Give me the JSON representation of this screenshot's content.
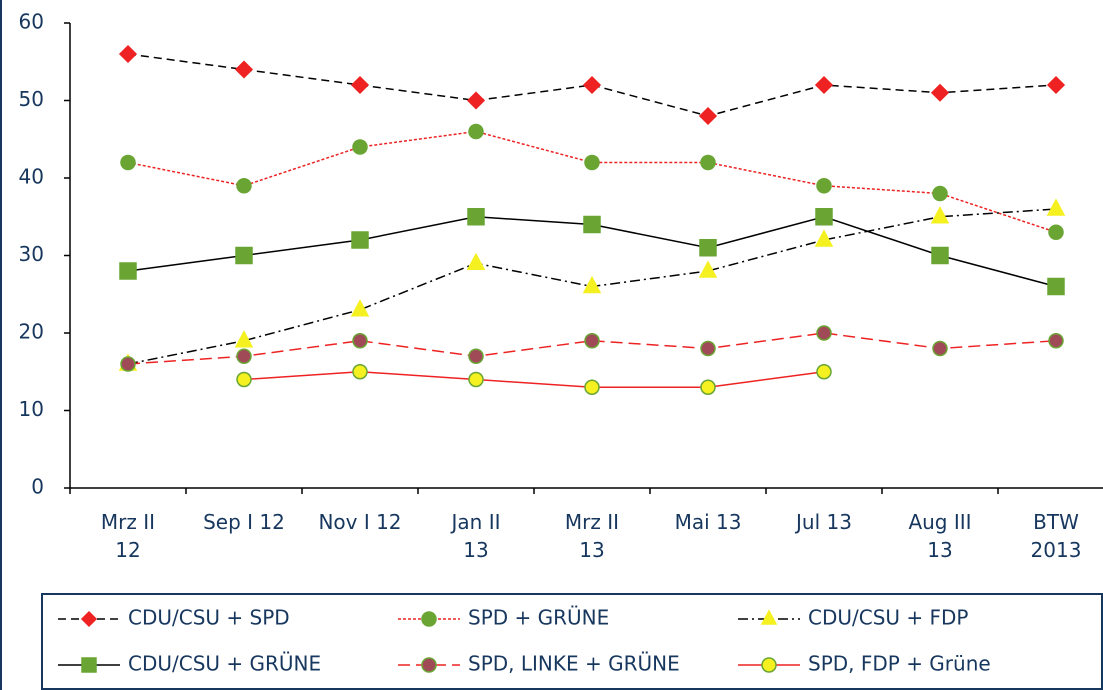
{
  "chart_data": {
    "type": "line",
    "categories": [
      "Mrz II\n12",
      "Sep I 12",
      "Nov I 12",
      "Jan II\n13",
      "Mrz II\n13",
      "Mai 13",
      "Jul 13",
      "Aug III\n13",
      "BTW\n2013"
    ],
    "ylim": [
      0,
      60
    ],
    "yticks": [
      0,
      10,
      20,
      30,
      40,
      50,
      60
    ],
    "series": [
      {
        "name": "CDU/CSU + SPD",
        "color": "#000000",
        "line_style": "dashed",
        "marker": "diamond",
        "marker_color": "#ee2222",
        "marker_edge": "#ee2222",
        "values": [
          56,
          54,
          52,
          50,
          52,
          48,
          52,
          51,
          52
        ]
      },
      {
        "name": "SPD + GRÜNE",
        "color": "#ee2222",
        "line_style": "dotted",
        "marker": "circle",
        "marker_color": "#6aa534",
        "marker_edge": "#6aa534",
        "values": [
          42,
          39,
          44,
          46,
          42,
          42,
          39,
          38,
          33
        ]
      },
      {
        "name": "CDU/CSU + FDP",
        "color": "#000000",
        "line_style": "dashdot",
        "marker": "triangle",
        "marker_color": "#f5f020",
        "marker_edge": "#f5f020",
        "values": [
          16,
          19,
          23,
          29,
          26,
          28,
          32,
          35,
          36
        ]
      },
      {
        "name": "CDU/CSU + GRÜNE",
        "color": "#000000",
        "line_style": "solid",
        "marker": "square",
        "marker_color": "#6aa534",
        "marker_edge": "#6aa534",
        "values": [
          28,
          30,
          32,
          35,
          34,
          31,
          35,
          30,
          26
        ]
      },
      {
        "name": "SPD, LINKE + GRÜNE",
        "color": "#ee2222",
        "line_style": "longdash",
        "marker": "circle",
        "marker_color": "#a04a58",
        "marker_edge": "#6aa534",
        "values": [
          16,
          17,
          19,
          17,
          19,
          18,
          20,
          18,
          19
        ]
      },
      {
        "name": "SPD, FDP + Grüne",
        "color": "#ee2222",
        "line_style": "solid",
        "marker": "circle",
        "marker_color": "#f5f020",
        "marker_edge": "#6aa534",
        "values": [
          null,
          14,
          15,
          14,
          13,
          13,
          15,
          null,
          null
        ]
      }
    ]
  }
}
